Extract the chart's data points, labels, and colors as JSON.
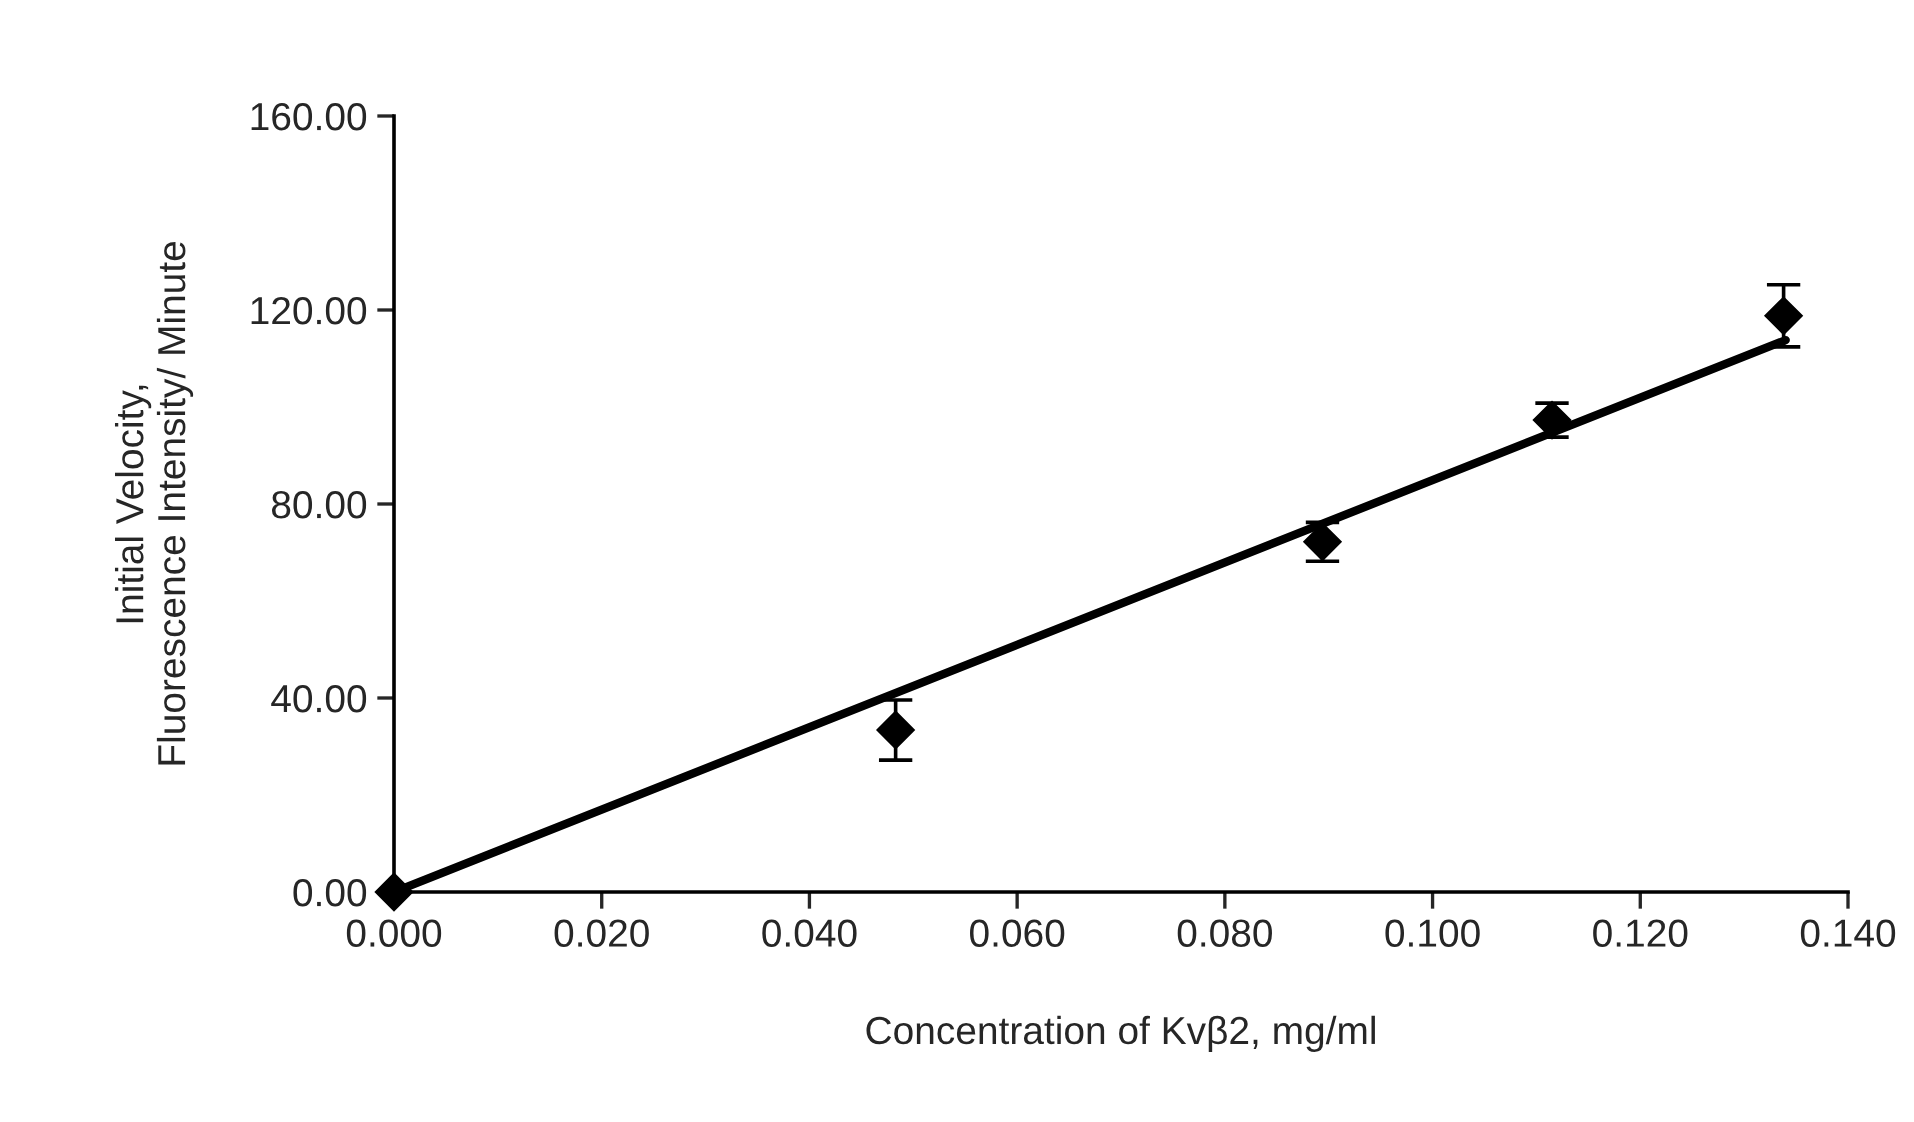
{
  "chart_data": {
    "type": "scatter",
    "xlabel": "Concentration of Kvβ2, mg/ml",
    "ylabel": "Initial Velocity,\nFluorescence Intensity/ Minute",
    "x": [
      0,
      0.0483,
      0.0894,
      0.1115,
      0.1338
    ],
    "marker": "diamond",
    "grid": false,
    "series": [
      {
        "color": "#000000",
        "values": [
          0,
          33.4,
          72.2,
          97.3,
          118.8
        ],
        "errors": [
          null,
          6.2,
          4,
          3.5,
          6.4
        ]
      },
      {
        "type": "line",
        "color": "#000000",
        "x": [
          0,
          0.134
        ],
        "values": [
          0,
          113.8
        ],
        "marker": "none",
        "line_style": "solid"
      }
    ],
    "xlim": [
      0,
      0.14
    ],
    "ylim": [
      0,
      160
    ],
    "xticks": [
      {
        "value": 0,
        "label": "0.000"
      },
      {
        "value": 0.02,
        "label": "0.020"
      },
      {
        "value": 0.04,
        "label": "0.040"
      },
      {
        "value": 0.06,
        "label": "0.060"
      },
      {
        "value": 0.08,
        "label": "0.080"
      },
      {
        "value": 0.1,
        "label": "0.100"
      },
      {
        "value": 0.12,
        "label": "0.120"
      },
      {
        "value": 0.14,
        "label": "0.140"
      }
    ],
    "yticks": [
      {
        "value": 0,
        "label": "0.00"
      },
      {
        "value": 40,
        "label": "40.00"
      },
      {
        "value": 80,
        "label": "80.00"
      },
      {
        "value": 120,
        "label": "120.00"
      },
      {
        "value": 160,
        "label": "160.00"
      }
    ]
  }
}
